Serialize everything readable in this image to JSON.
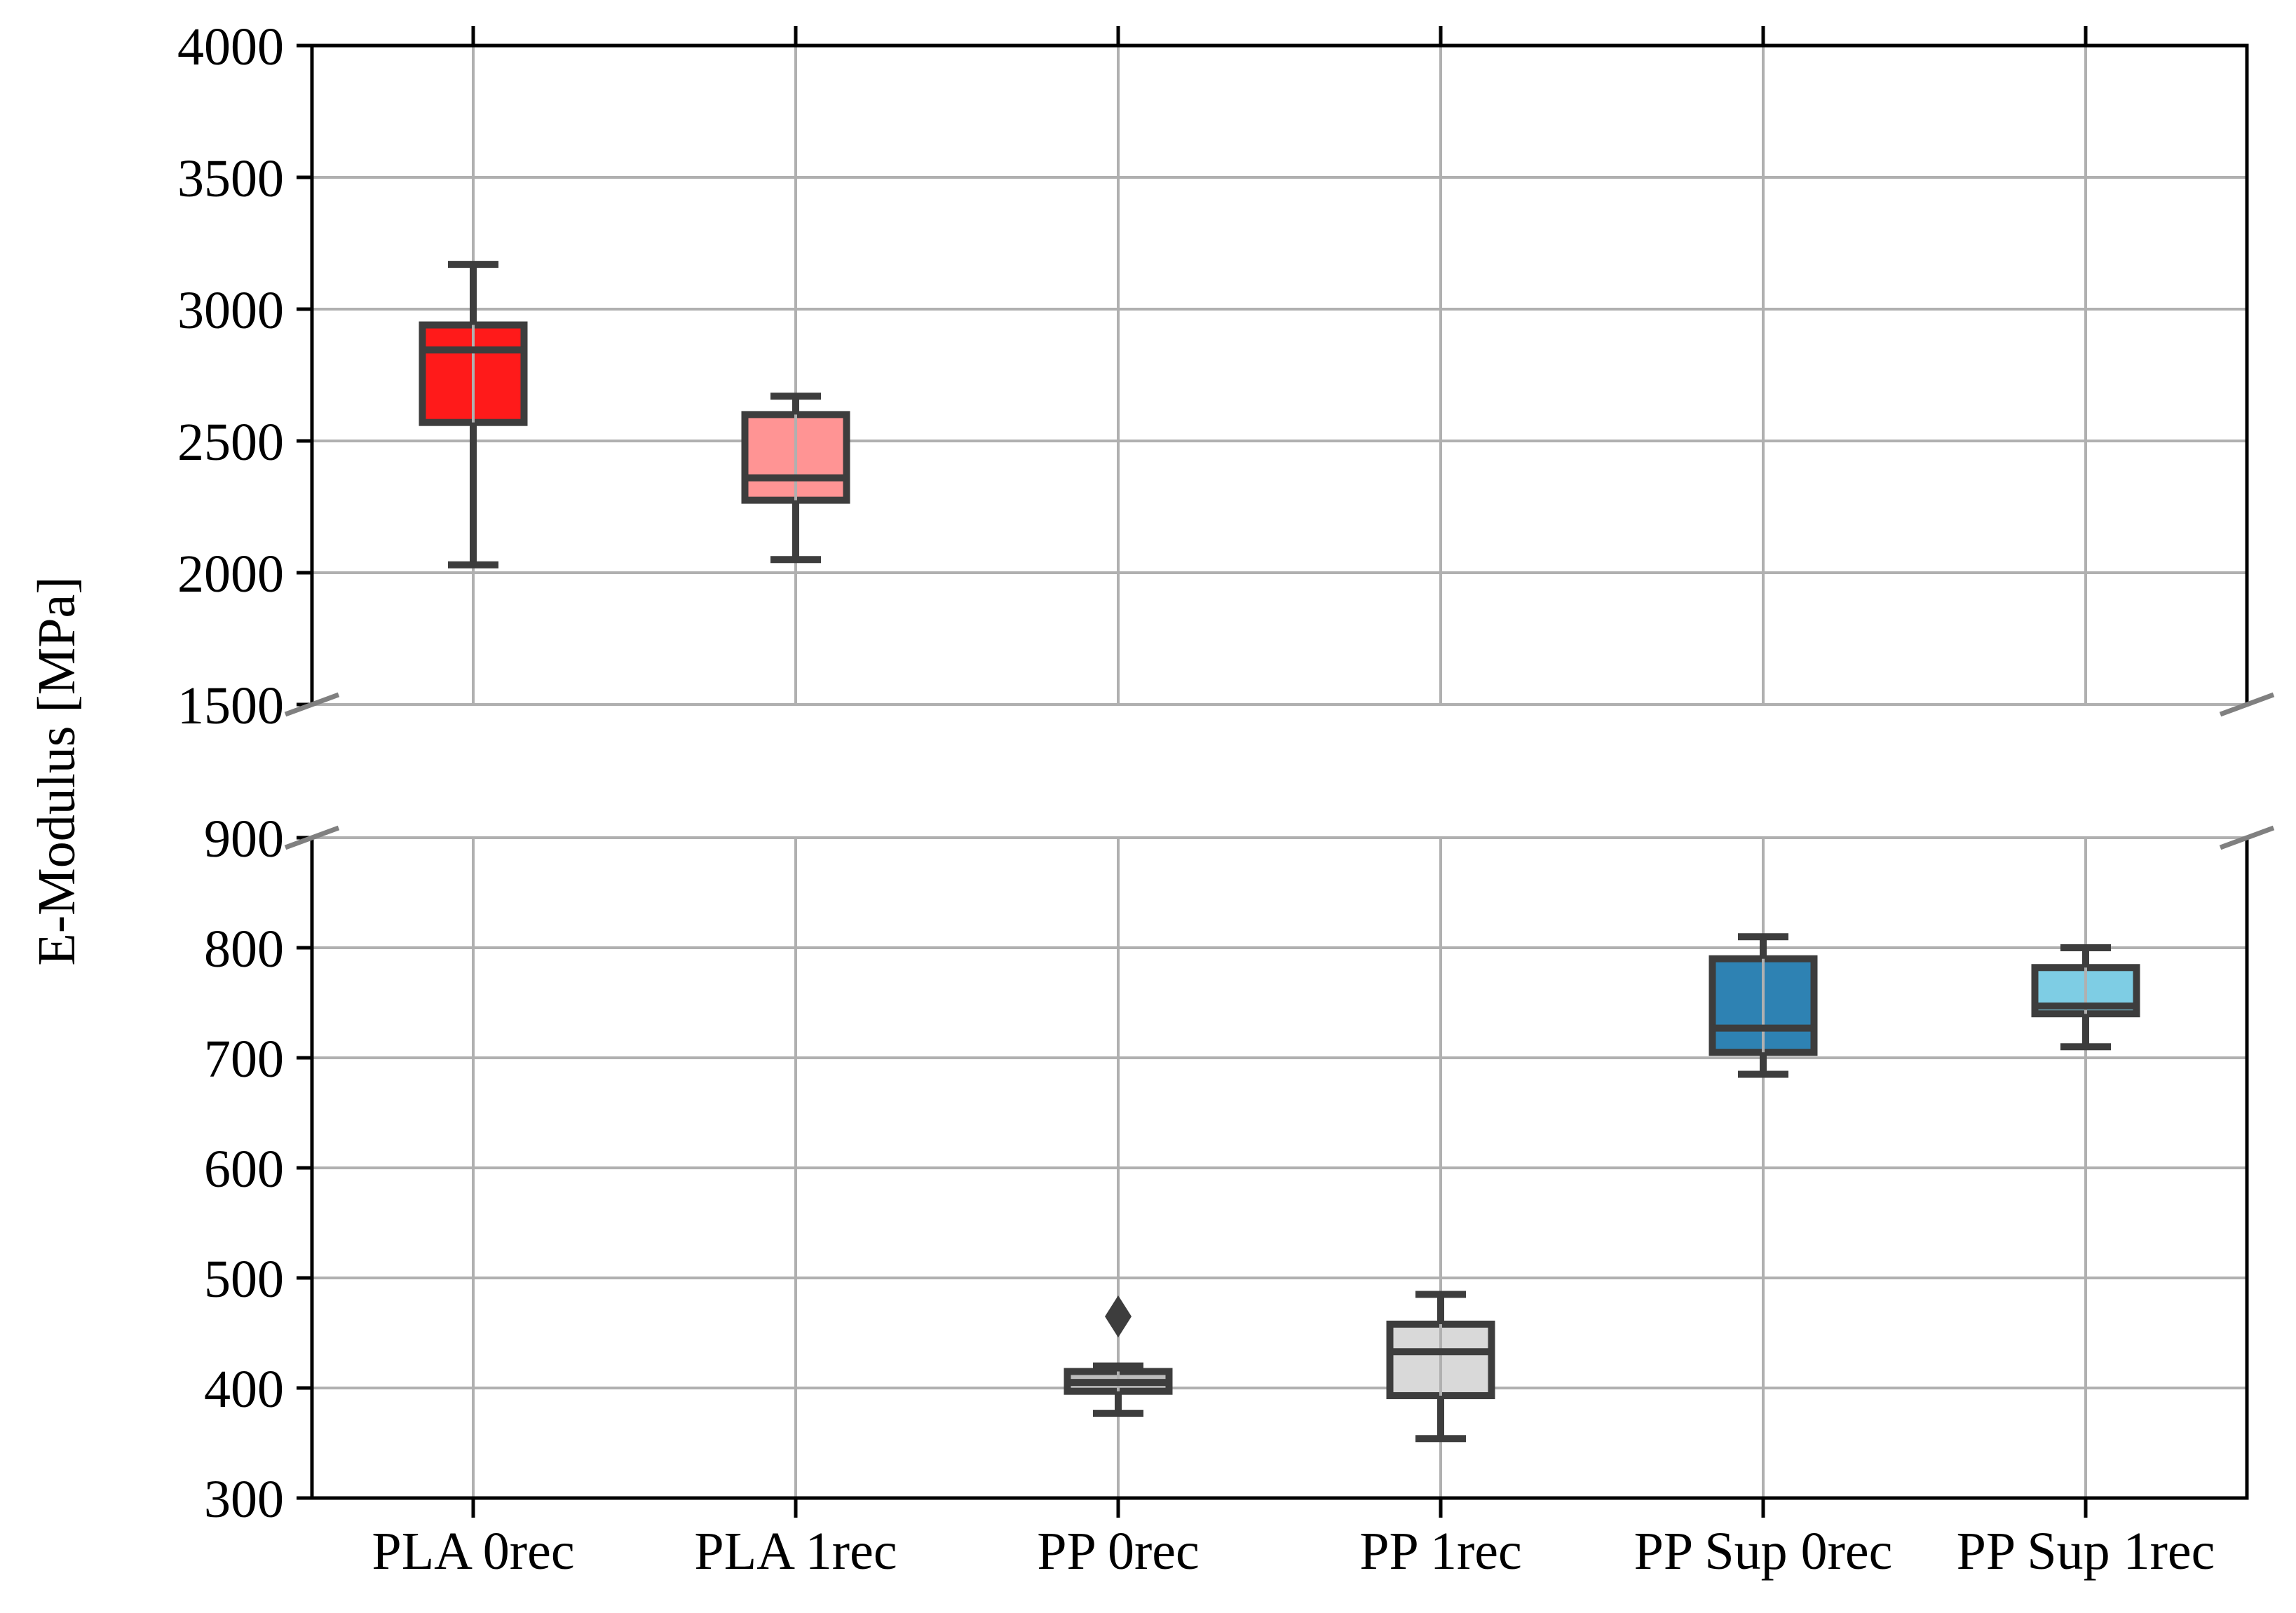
{
  "chart_data": {
    "type": "box",
    "ylabel": "E-Modulus [MPa]",
    "xlabel": "",
    "grid": true,
    "broken_axis": true,
    "categories": [
      "PLA 0rec",
      "PLA 1rec",
      "PP 0rec",
      "PP 1rec",
      "PP Sup 0rec",
      "PP Sup 1rec"
    ],
    "upper_panel": {
      "ylim": [
        1500,
        4000
      ],
      "yticks": [
        1500,
        2000,
        2500,
        3000,
        3500,
        4000
      ]
    },
    "lower_panel": {
      "ylim": [
        300,
        900
      ],
      "yticks": [
        300,
        400,
        500,
        600,
        700,
        800,
        900
      ]
    },
    "boxes": [
      {
        "category": "PLA 0rec",
        "whisker_low": 2030,
        "q1": 2570,
        "median": 2845,
        "q3": 2940,
        "whisker_high": 3170,
        "outliers": [],
        "color": "#ff1a1a"
      },
      {
        "category": "PLA 1rec",
        "whisker_low": 2050,
        "q1": 2275,
        "median": 2360,
        "q3": 2600,
        "whisker_high": 2670,
        "outliers": [],
        "color": "#ff9494"
      },
      {
        "category": "PP 0rec",
        "whisker_low": 377,
        "q1": 397,
        "median": 405,
        "q3": 415,
        "whisker_high": 420,
        "outliers": [
          465
        ],
        "color": "#bcbcbc"
      },
      {
        "category": "PP 1rec",
        "whisker_low": 354,
        "q1": 393,
        "median": 433,
        "q3": 458,
        "whisker_high": 485,
        "outliers": [],
        "color": "#d9d9d9"
      },
      {
        "category": "PP Sup 0rec",
        "whisker_low": 685,
        "q1": 705,
        "median": 727,
        "q3": 790,
        "whisker_high": 810,
        "outliers": [],
        "color": "#2e82b3"
      },
      {
        "category": "PP Sup 1rec",
        "whisker_low": 710,
        "q1": 740,
        "median": 747,
        "q3": 782,
        "whisker_high": 800,
        "outliers": [],
        "color": "#7ecde4"
      }
    ]
  }
}
